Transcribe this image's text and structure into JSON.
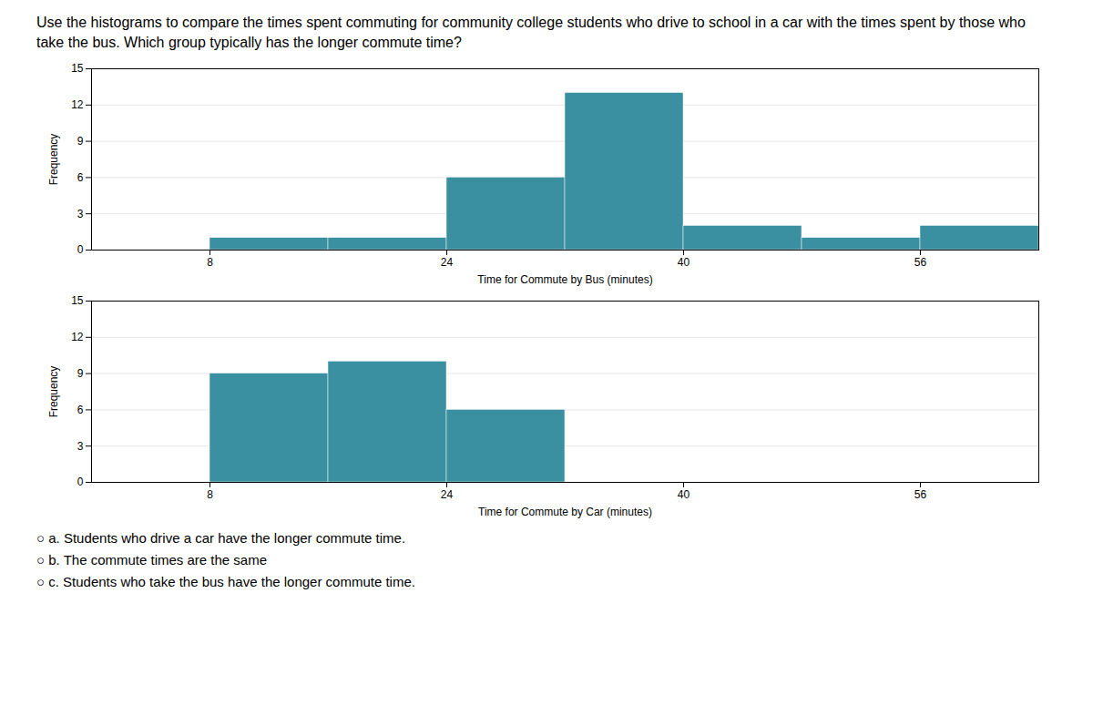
{
  "chart_data": [
    {
      "type": "histogram",
      "title": "Use the histograms to compare the times spent commuting for community college students who drive to school in a car with the times spent by those who take the bus. Which group typically has the longer commute time?",
      "bins": [
        0,
        8,
        16,
        24,
        32,
        40,
        48,
        56,
        64
      ],
      "values": [
        0,
        1,
        1,
        6,
        13,
        2,
        1,
        2
      ],
      "color": "#3a8fa0",
      "xlabel": "Time for Commute by Bus (minutes)",
      "ylabel": "Frequency",
      "xlim": [
        0,
        64
      ],
      "xticks": [
        8,
        24,
        40,
        56
      ],
      "ylim": [
        0,
        15
      ],
      "yticks": [
        0,
        3,
        6,
        9,
        12,
        15
      ],
      "grid": true
    },
    {
      "type": "histogram",
      "bins": [
        0,
        8,
        16,
        24,
        32,
        40,
        48,
        56,
        64
      ],
      "values": [
        0,
        9,
        10,
        6,
        0,
        0,
        0,
        0
      ],
      "color": "#3a8fa0",
      "xlabel": "Time for Commute by Car (minutes)",
      "ylabel": "Frequency",
      "xlim": [
        0,
        64
      ],
      "xticks": [
        8,
        24,
        40,
        56
      ],
      "ylim": [
        0,
        15
      ],
      "yticks": [
        0,
        3,
        6,
        9,
        12,
        15
      ],
      "grid": true,
      "annotations": [
        "○ a. Students who drive a car have the longer commute time.",
        "○ b. The commute times are the same",
        "○ c. Students who take the bus have the longer commute time."
      ]
    }
  ]
}
